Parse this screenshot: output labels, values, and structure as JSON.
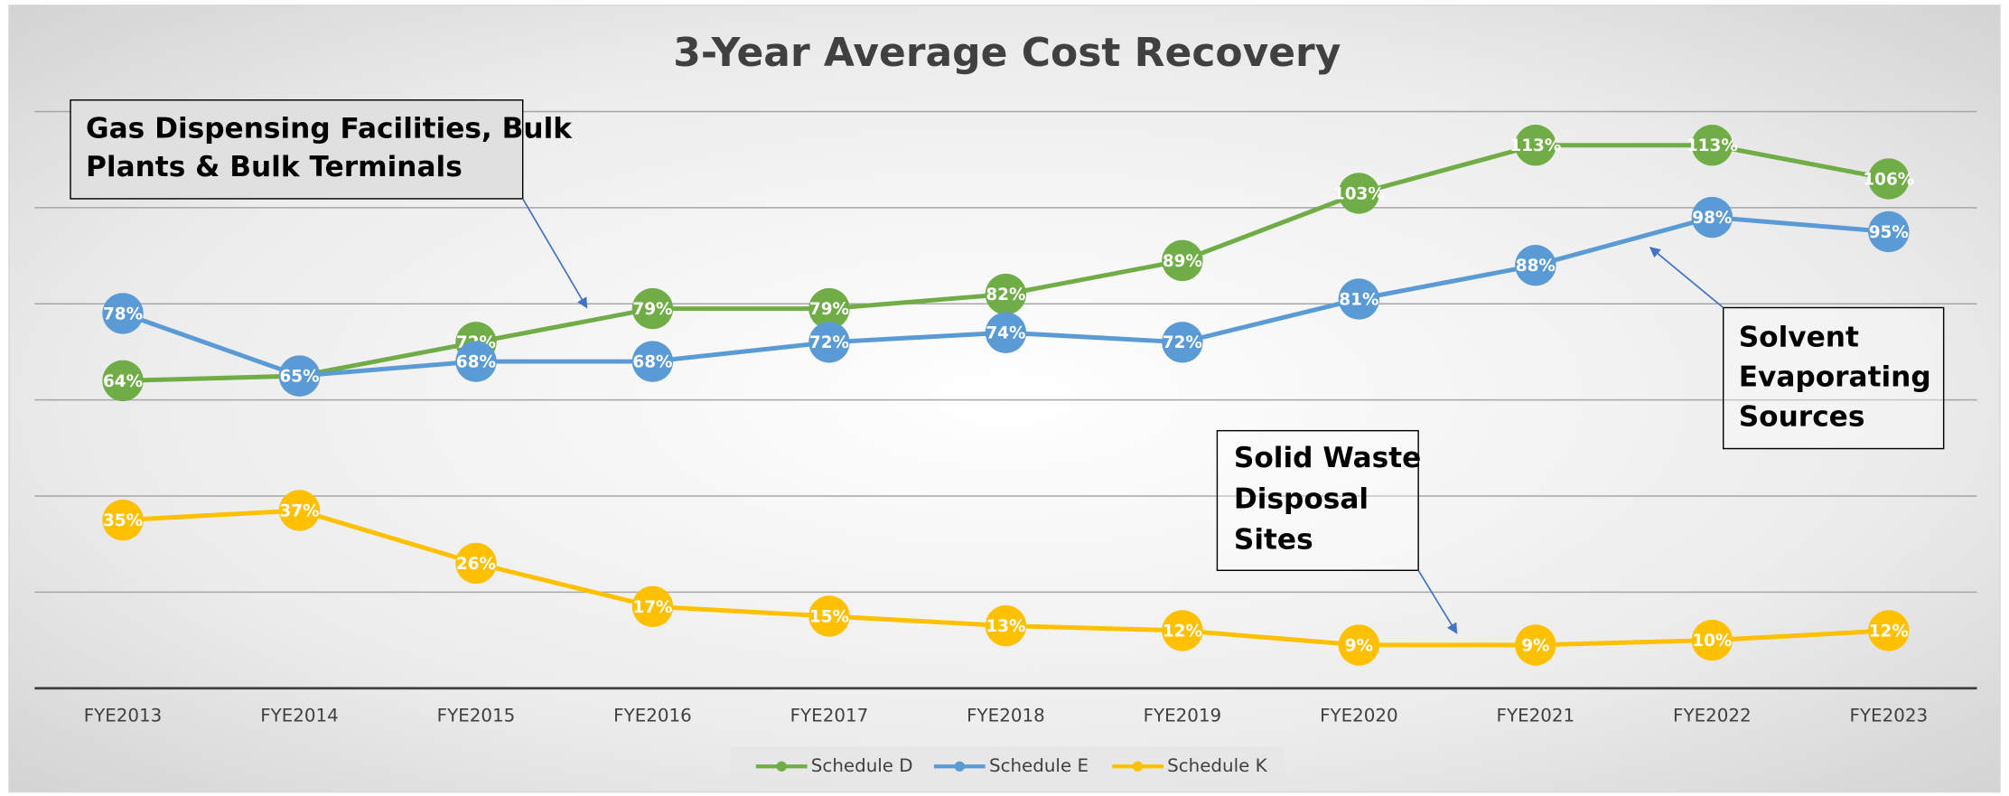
{
  "chart_data": {
    "type": "line",
    "title": "3-Year Average Cost Recovery",
    "categories": [
      "FYE2013",
      "FYE2014",
      "FYE2015",
      "FYE2016",
      "FYE2017",
      "FYE2018",
      "FYE2019",
      "FYE2020",
      "FYE2021",
      "FYE2022",
      "FYE2023"
    ],
    "series": [
      {
        "name": "Schedule D",
        "color": "#70ad47",
        "values": [
          64,
          65,
          72,
          79,
          79,
          82,
          89,
          103,
          113,
          113,
          106
        ],
        "value_labels": [
          "64%",
          "65%",
          "72%",
          "79%",
          "79%",
          "82%",
          "89%",
          "103%",
          "113%",
          "113%",
          "106%"
        ]
      },
      {
        "name": "Schedule E",
        "color": "#5b9bd5",
        "values": [
          78,
          65,
          68,
          68,
          72,
          74,
          72,
          81,
          88,
          98,
          95
        ],
        "value_labels": [
          "78%",
          "65%",
          "68%",
          "68%",
          "72%",
          "74%",
          "72%",
          "81%",
          "88%",
          "98%",
          "95%"
        ]
      },
      {
        "name": "Schedule K",
        "color": "#ffc000",
        "values": [
          35,
          37,
          26,
          17,
          15,
          13,
          12,
          9,
          9,
          10,
          12
        ],
        "value_labels": [
          "35%",
          "37%",
          "26%",
          "17%",
          "15%",
          "13%",
          "12%",
          "9%",
          "9%",
          "10%",
          "12%"
        ]
      }
    ],
    "ylim": [
      0,
      120
    ],
    "yticks": [
      0,
      20,
      40,
      60,
      80,
      100,
      120
    ],
    "grid": true,
    "legend": "bottom",
    "annotations": [
      {
        "text": [
          "Gas Dispensing Facilities, Bulk",
          "Plants & Bulk Terminals"
        ]
      },
      {
        "text": [
          "Solvent",
          "Evaporating",
          "Sources"
        ]
      },
      {
        "text": [
          "Solid Waste",
          "Disposal",
          "Sites"
        ]
      }
    ]
  }
}
